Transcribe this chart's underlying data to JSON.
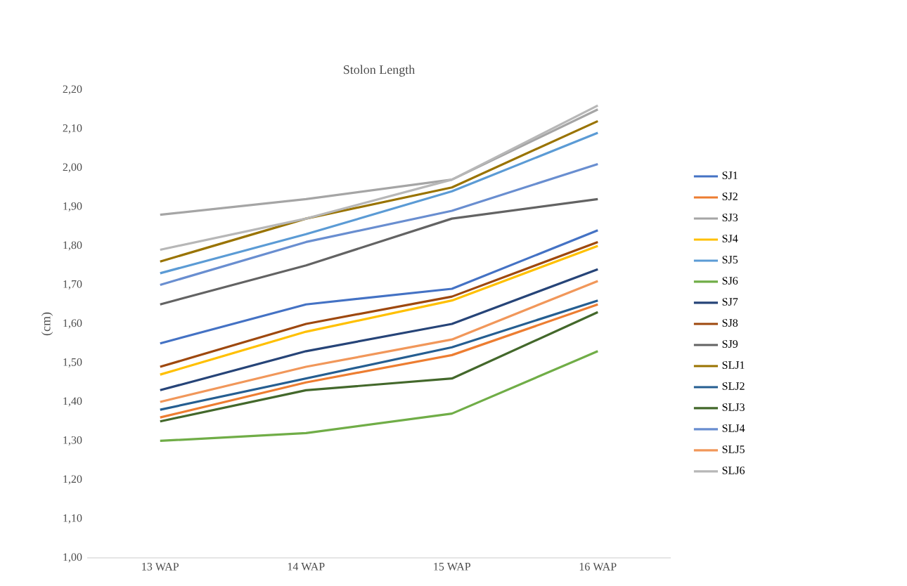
{
  "chart_data": {
    "type": "line",
    "title": "Stolon Length",
    "ylabel": "(cm)",
    "categories": [
      "13 WAP",
      "14 WAP",
      "15 WAP",
      "16 WAP"
    ],
    "ylim": [
      1.0,
      2.2
    ],
    "yticks": [
      {
        "value": 1.0,
        "label": "1,00"
      },
      {
        "value": 1.1,
        "label": "1,10"
      },
      {
        "value": 1.2,
        "label": "1,20"
      },
      {
        "value": 1.3,
        "label": "1,30"
      },
      {
        "value": 1.4,
        "label": "1,40"
      },
      {
        "value": 1.5,
        "label": "1,50"
      },
      {
        "value": 1.6,
        "label": "1,60"
      },
      {
        "value": 1.7,
        "label": "1,70"
      },
      {
        "value": 1.8,
        "label": "1,80"
      },
      {
        "value": 1.9,
        "label": "1,90"
      },
      {
        "value": 2.0,
        "label": "2,00"
      },
      {
        "value": 2.1,
        "label": "2,10"
      },
      {
        "value": 2.2,
        "label": "2,20"
      }
    ],
    "legend": "right",
    "marker": "none",
    "line_style": "solid",
    "series": [
      {
        "name": "SJ1",
        "color": "#4472c4",
        "values": [
          1.55,
          1.65,
          1.69,
          1.84
        ]
      },
      {
        "name": "SJ2",
        "color": "#ed7d31",
        "values": [
          1.36,
          1.45,
          1.52,
          1.65
        ]
      },
      {
        "name": "SJ3",
        "color": "#a5a5a5",
        "values": [
          1.88,
          1.92,
          1.97,
          2.15
        ]
      },
      {
        "name": "SJ4",
        "color": "#ffc000",
        "values": [
          1.47,
          1.58,
          1.66,
          1.8
        ]
      },
      {
        "name": "SJ5",
        "color": "#5b9bd5",
        "values": [
          1.73,
          1.83,
          1.94,
          2.09
        ]
      },
      {
        "name": "SJ6",
        "color": "#70ad47",
        "values": [
          1.3,
          1.32,
          1.37,
          1.53
        ]
      },
      {
        "name": "SJ7",
        "color": "#264478",
        "values": [
          1.43,
          1.53,
          1.6,
          1.74
        ]
      },
      {
        "name": "SJ8",
        "color": "#9e480e",
        "values": [
          1.49,
          1.6,
          1.67,
          1.81
        ]
      },
      {
        "name": "SJ9",
        "color": "#636363",
        "values": [
          1.65,
          1.75,
          1.87,
          1.92
        ]
      },
      {
        "name": "SLJ1",
        "color": "#997300",
        "values": [
          1.76,
          1.87,
          1.95,
          2.12
        ]
      },
      {
        "name": "SLJ2",
        "color": "#255e91",
        "values": [
          1.38,
          1.46,
          1.54,
          1.66
        ]
      },
      {
        "name": "SLJ3",
        "color": "#43682b",
        "values": [
          1.35,
          1.43,
          1.46,
          1.63
        ]
      },
      {
        "name": "SLJ4",
        "color": "#698ed0",
        "values": [
          1.7,
          1.81,
          1.89,
          2.01
        ]
      },
      {
        "name": "SLJ5",
        "color": "#f1975a",
        "values": [
          1.4,
          1.49,
          1.56,
          1.71
        ]
      },
      {
        "name": "SLJ6",
        "color": "#b7b7b7",
        "values": [
          1.79,
          1.87,
          1.97,
          2.16
        ]
      }
    ]
  }
}
